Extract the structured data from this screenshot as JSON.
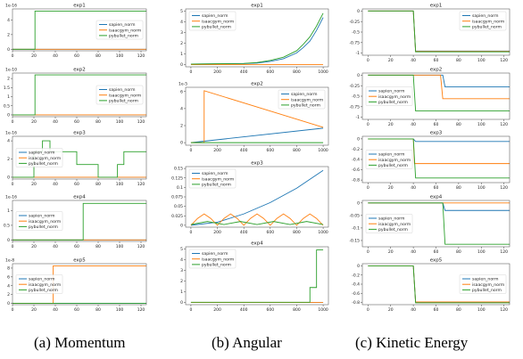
{
  "series_names": [
    "sapien_norm",
    "isaacgym_norm",
    "pybullet_norm"
  ],
  "colors": {
    "sapien": "#1f77b4",
    "isaacgym": "#ff7f0e",
    "pybullet": "#2ca02c"
  },
  "captions": [
    "(a) Momentum",
    "(b) Angular",
    "(c) Kinetic Energy"
  ],
  "chart_data": [
    {
      "column": "Momentum",
      "type": "line",
      "title": "exp1",
      "exponent": "1e-16",
      "xlim": [
        0,
        125
      ],
      "xticks": [
        0,
        20,
        40,
        60,
        80,
        100,
        120
      ],
      "ylim": [
        -0.2,
        5.5
      ],
      "yticks": [
        0,
        2,
        4
      ],
      "legend": "center-right",
      "series": [
        {
          "name": "sapien_norm",
          "x": [
            0,
            125
          ],
          "y": [
            0,
            0
          ]
        },
        {
          "name": "isaacgym_norm",
          "x": [
            0,
            125
          ],
          "y": [
            0,
            0
          ]
        },
        {
          "name": "pybullet_norm",
          "x": [
            0,
            21,
            21,
            125
          ],
          "y": [
            0,
            0,
            5.2,
            5.2
          ]
        }
      ]
    },
    {
      "column": "Momentum",
      "type": "line",
      "title": "exp2",
      "exponent": "1e-10",
      "xlim": [
        0,
        125
      ],
      "xticks": [
        0,
        20,
        40,
        60,
        80,
        100,
        120
      ],
      "ylim": [
        -0.1,
        2.3
      ],
      "yticks": [
        0.0,
        0.5,
        1.0,
        1.5,
        2.0
      ],
      "legend": "center-right",
      "series": [
        {
          "name": "sapien_norm",
          "x": [
            0,
            125
          ],
          "y": [
            0,
            0
          ]
        },
        {
          "name": "isaacgym_norm",
          "x": [
            0,
            125
          ],
          "y": [
            0,
            0
          ]
        },
        {
          "name": "pybullet_norm",
          "x": [
            0,
            21,
            21,
            125
          ],
          "y": [
            0,
            0,
            2.2,
            2.2
          ]
        }
      ]
    },
    {
      "column": "Momentum",
      "type": "line",
      "title": "exp3",
      "exponent": "1e-16",
      "xlim": [
        0,
        125
      ],
      "xticks": [
        0,
        20,
        40,
        60,
        80,
        100,
        120
      ],
      "ylim": [
        -0.2,
        4.5
      ],
      "yticks": [
        0,
        2,
        4
      ],
      "legend": "center-left",
      "series": [
        {
          "name": "sapien_norm",
          "x": [
            0,
            125
          ],
          "y": [
            0,
            0
          ]
        },
        {
          "name": "isaacgym_norm",
          "x": [
            0,
            125
          ],
          "y": [
            0,
            0
          ]
        },
        {
          "name": "pybullet_norm",
          "x": [
            0,
            20,
            20,
            28,
            28,
            35,
            35,
            60,
            60,
            80,
            80,
            98,
            98,
            104,
            104,
            125
          ],
          "y": [
            0,
            0,
            2.8,
            2.8,
            4,
            4,
            2.8,
            2.8,
            1.4,
            1.4,
            0,
            0,
            1.4,
            1.4,
            2.8,
            2.8
          ]
        }
      ]
    },
    {
      "column": "Momentum",
      "type": "line",
      "title": "exp4",
      "exponent": "1e-16",
      "xlim": [
        0,
        125
      ],
      "xticks": [
        0,
        20,
        40,
        60,
        80,
        100,
        120
      ],
      "ylim": [
        -0.05,
        1.35
      ],
      "yticks": [
        0.0,
        0.5,
        1.0
      ],
      "legend": "center-left",
      "series": [
        {
          "name": "sapien_norm",
          "x": [
            0,
            125
          ],
          "y": [
            0,
            0
          ]
        },
        {
          "name": "isaacgym_norm",
          "x": [
            0,
            125
          ],
          "y": [
            0,
            0
          ]
        },
        {
          "name": "pybullet_norm",
          "x": [
            0,
            66,
            66,
            125
          ],
          "y": [
            0,
            0,
            1.25,
            1.25
          ]
        }
      ]
    },
    {
      "column": "Momentum",
      "type": "line",
      "title": "exp5",
      "exponent": "1e-8",
      "xlim": [
        0,
        125
      ],
      "xticks": [
        0,
        20,
        40,
        60,
        80,
        100,
        120
      ],
      "ylim": [
        -0.3,
        9
      ],
      "yticks": [
        0,
        2,
        4,
        6,
        8
      ],
      "legend": "center-left",
      "series": [
        {
          "name": "sapien_norm",
          "x": [
            0,
            125
          ],
          "y": [
            0,
            0
          ]
        },
        {
          "name": "isaacgym_norm",
          "x": [
            0,
            38,
            38,
            125
          ],
          "y": [
            0,
            0,
            8.5,
            8.5
          ]
        },
        {
          "name": "pybullet_norm",
          "x": [
            0,
            125
          ],
          "y": [
            0,
            0
          ]
        }
      ]
    },
    {
      "column": "Angular",
      "type": "line",
      "title": "exp1",
      "exponent": "",
      "xlim": [
        -40,
        1040
      ],
      "xticks": [
        0,
        200,
        400,
        600,
        800,
        1000
      ],
      "ylim": [
        -0.2,
        5.2
      ],
      "yticks": [
        0,
        1,
        2,
        3,
        4,
        5
      ],
      "legend": "top-left",
      "series": [
        {
          "name": "sapien_norm",
          "x": [
            0,
            400,
            500,
            600,
            700,
            800,
            850,
            900,
            950,
            1000
          ],
          "y": [
            0.05,
            0.1,
            0.15,
            0.3,
            0.55,
            1.1,
            1.6,
            2.2,
            3.2,
            4.4
          ]
        },
        {
          "name": "isaacgym_norm",
          "x": [
            0,
            1000
          ],
          "y": [
            0,
            0
          ]
        },
        {
          "name": "pybullet_norm",
          "x": [
            0,
            400,
            500,
            600,
            700,
            800,
            850,
            900,
            950,
            1000
          ],
          "y": [
            0.05,
            0.12,
            0.2,
            0.4,
            0.7,
            1.3,
            1.9,
            2.6,
            3.6,
            4.8
          ]
        }
      ]
    },
    {
      "column": "Angular",
      "type": "line",
      "title": "exp2",
      "exponent": "1e-5",
      "xlim": [
        -40,
        1040
      ],
      "xticks": [
        0,
        200,
        400,
        600,
        800,
        1000
      ],
      "ylim": [
        -0.3,
        6.5
      ],
      "yticks": [
        0,
        2,
        4,
        6
      ],
      "legend": "top-right",
      "series": [
        {
          "name": "sapien_norm",
          "x": [
            0,
            1000
          ],
          "y": [
            0,
            1.7
          ]
        },
        {
          "name": "isaacgym_norm",
          "x": [
            0,
            100,
            100,
            1000
          ],
          "y": [
            0,
            0,
            6.1,
            1.8
          ]
        },
        {
          "name": "pybullet_norm",
          "x": [
            0,
            1000
          ],
          "y": [
            0,
            0
          ]
        }
      ]
    },
    {
      "column": "Angular",
      "type": "line",
      "title": "exp3",
      "exponent": "",
      "xlim": [
        -40,
        1040
      ],
      "xticks": [
        0,
        200,
        400,
        600,
        800,
        1000
      ],
      "ylim": [
        -0.005,
        0.155
      ],
      "yticks": [
        0.0,
        0.025,
        0.05,
        0.075,
        0.1,
        0.125,
        0.15
      ],
      "legend": "top-left",
      "series": [
        {
          "name": "sapien_norm",
          "x": [
            0,
            200,
            400,
            600,
            800,
            1000
          ],
          "y": [
            0,
            0.008,
            0.03,
            0.06,
            0.098,
            0.145
          ]
        },
        {
          "name": "isaacgym_norm",
          "x": [
            0,
            50,
            100,
            150,
            200,
            250,
            300,
            350,
            400,
            450,
            500,
            550,
            600,
            650,
            700,
            750,
            800,
            850,
            900,
            950,
            1000
          ],
          "y": [
            0,
            0.018,
            0.03,
            0.018,
            0,
            0.018,
            0.03,
            0.018,
            0,
            0.018,
            0.03,
            0.018,
            0,
            0.018,
            0.03,
            0.018,
            0,
            0.018,
            0.03,
            0.018,
            0
          ]
        },
        {
          "name": "pybullet_norm",
          "x": [
            0,
            125,
            250,
            375,
            500,
            625,
            750,
            875,
            1000
          ],
          "y": [
            0.002,
            0.01,
            0.002,
            0.01,
            0.002,
            0.01,
            0.002,
            0.01,
            0.002
          ]
        }
      ]
    },
    {
      "column": "Angular",
      "type": "line",
      "title": "exp4",
      "exponent": "",
      "xlim": [
        -40,
        1040
      ],
      "xticks": [
        0,
        200,
        400,
        600,
        800,
        1000
      ],
      "ylim": [
        -0.2,
        5.2
      ],
      "yticks": [
        0,
        1,
        2,
        3,
        4,
        5
      ],
      "legend": "top-left",
      "series": [
        {
          "name": "sapien_norm",
          "x": [
            0,
            1000
          ],
          "y": [
            0,
            0
          ]
        },
        {
          "name": "isaacgym_norm",
          "x": [
            0,
            1000
          ],
          "y": [
            0,
            0
          ]
        },
        {
          "name": "pybullet_norm",
          "x": [
            0,
            900,
            900,
            950,
            950,
            1000
          ],
          "y": [
            0.02,
            0.02,
            1.4,
            1.4,
            4.9,
            4.9
          ]
        }
      ]
    },
    {
      "column": "Kinetic Energy",
      "type": "line",
      "title": "exp1",
      "exponent": "",
      "xlim": [
        -5,
        125
      ],
      "xticks": [
        0,
        20,
        40,
        60,
        80,
        100,
        120
      ],
      "ylim": [
        -1.05,
        0.05
      ],
      "yticks": [
        0.0,
        -0.25,
        -0.5,
        -0.75,
        -1.0
      ],
      "legend": "top-right",
      "series": [
        {
          "name": "sapien_norm",
          "x": [
            0,
            40,
            42,
            125
          ],
          "y": [
            0,
            0,
            -0.95,
            -0.95
          ]
        },
        {
          "name": "isaacgym_norm",
          "x": [
            0,
            40,
            42,
            125
          ],
          "y": [
            0,
            0,
            -0.96,
            -0.96
          ]
        },
        {
          "name": "pybullet_norm",
          "x": [
            0,
            40,
            42,
            125
          ],
          "y": [
            0,
            0,
            -0.97,
            -0.97
          ]
        }
      ]
    },
    {
      "column": "Kinetic Energy",
      "type": "line",
      "title": "exp2",
      "exponent": "",
      "xlim": [
        -5,
        125
      ],
      "xticks": [
        0,
        20,
        40,
        60,
        80,
        100,
        120
      ],
      "ylim": [
        -1.05,
        0.05
      ],
      "yticks": [
        0.0,
        -0.25,
        -0.5,
        -0.75,
        -1.0
      ],
      "legend": "center-left",
      "series": [
        {
          "name": "sapien_norm",
          "x": [
            0,
            66,
            68,
            125
          ],
          "y": [
            0,
            0,
            -0.28,
            -0.28
          ]
        },
        {
          "name": "isaacgym_norm",
          "x": [
            0,
            64,
            66,
            125
          ],
          "y": [
            0,
            0,
            -0.56,
            -0.56
          ]
        },
        {
          "name": "pybullet_norm",
          "x": [
            0,
            40,
            42,
            125
          ],
          "y": [
            0,
            0,
            -0.85,
            -0.85
          ]
        }
      ]
    },
    {
      "column": "Kinetic Energy",
      "type": "line",
      "title": "exp3",
      "exponent": "",
      "xlim": [
        -5,
        125
      ],
      "xticks": [
        0,
        20,
        40,
        60,
        80,
        100,
        120
      ],
      "ylim": [
        -0.85,
        0.05
      ],
      "yticks": [
        0.0,
        -0.2,
        -0.4,
        -0.6,
        -0.8
      ],
      "legend": "center-left",
      "series": [
        {
          "name": "sapien_norm",
          "x": [
            0,
            40,
            42,
            125
          ],
          "y": [
            0,
            0,
            -0.05,
            -0.05
          ]
        },
        {
          "name": "isaacgym_norm",
          "x": [
            0,
            40,
            41,
            125
          ],
          "y": [
            0,
            0,
            -0.48,
            -0.48
          ]
        },
        {
          "name": "pybullet_norm",
          "x": [
            0,
            40,
            42,
            125
          ],
          "y": [
            0,
            0,
            -0.76,
            -0.76
          ]
        }
      ]
    },
    {
      "column": "Kinetic Energy",
      "type": "line",
      "title": "exp4",
      "exponent": "",
      "xlim": [
        -5,
        125
      ],
      "xticks": [
        0,
        20,
        40,
        60,
        80,
        100,
        120
      ],
      "ylim": [
        -0.175,
        0.01
      ],
      "yticks": [
        0.0,
        -0.05,
        -0.1,
        -0.15
      ],
      "legend": "center-left",
      "series": [
        {
          "name": "sapien_norm",
          "x": [
            0,
            66,
            68,
            125
          ],
          "y": [
            0,
            0,
            -0.03,
            -0.03
          ]
        },
        {
          "name": "isaacgym_norm",
          "x": [
            0,
            125
          ],
          "y": [
            0,
            0
          ]
        },
        {
          "name": "pybullet_norm",
          "x": [
            0,
            66,
            68,
            125
          ],
          "y": [
            0,
            0,
            -0.165,
            -0.165
          ]
        }
      ]
    },
    {
      "column": "Kinetic Energy",
      "type": "line",
      "title": "exp5",
      "exponent": "",
      "xlim": [
        -5,
        125
      ],
      "xticks": [
        0,
        20,
        40,
        60,
        80,
        100,
        120
      ],
      "ylim": [
        -0.85,
        0.05
      ],
      "yticks": [
        0.0,
        -0.2,
        -0.4,
        -0.6,
        -0.8
      ],
      "legend": "center-right",
      "series": [
        {
          "name": "sapien_norm",
          "x": [
            0,
            40,
            42,
            125
          ],
          "y": [
            0,
            0,
            -0.8,
            -0.8
          ]
        },
        {
          "name": "isaacgym_norm",
          "x": [
            0,
            40,
            42,
            125
          ],
          "y": [
            0,
            0,
            -0.79,
            -0.79
          ]
        },
        {
          "name": "pybullet_norm",
          "x": [
            0,
            40,
            42,
            125
          ],
          "y": [
            0,
            0,
            -0.81,
            -0.81
          ]
        }
      ]
    }
  ]
}
